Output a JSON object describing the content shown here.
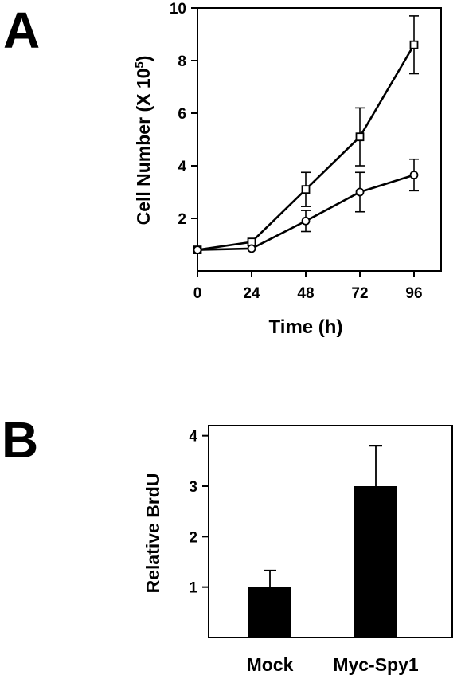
{
  "panels": {
    "a": {
      "letter": "A"
    },
    "b": {
      "letter": "B"
    }
  },
  "chart_data": [
    {
      "type": "line",
      "xlabel": "Time (h)",
      "ylabel": "Cell Number (X 10",
      "ylabel_superscript": "5",
      "ylabel_close": ")",
      "x": [
        0,
        24,
        48,
        72,
        96
      ],
      "xlim": [
        0,
        108
      ],
      "ylim": [
        0,
        10
      ],
      "xticks": [
        "0",
        "24",
        "48",
        "72",
        "96"
      ],
      "yticks": [
        "2",
        "4",
        "6",
        "8",
        "10"
      ],
      "ytick_values": [
        2,
        4,
        6,
        8,
        10
      ],
      "grid": false,
      "legend": "none",
      "series": [
        {
          "marker": "square",
          "values": [
            0.8,
            1.1,
            3.1,
            5.1,
            8.6
          ],
          "errors": [
            0,
            0,
            0.65,
            1.1,
            1.1
          ]
        },
        {
          "marker": "circle",
          "values": [
            0.8,
            0.85,
            1.9,
            3.0,
            3.65
          ],
          "errors": [
            0,
            0,
            0.4,
            0.75,
            0.6
          ]
        }
      ]
    },
    {
      "type": "bar",
      "categories": [
        "Mock",
        "Myc-Spy1"
      ],
      "values": [
        1.0,
        3.0
      ],
      "errors": [
        0.33,
        0.8
      ],
      "ylabel": "Relative BrdU",
      "ylim": [
        0,
        4.2
      ],
      "yticks": [
        "1",
        "2",
        "3",
        "4"
      ],
      "ytick_values": [
        1,
        2,
        3,
        4
      ],
      "grid": false,
      "legend": "none",
      "bar_color": "#000000"
    }
  ]
}
